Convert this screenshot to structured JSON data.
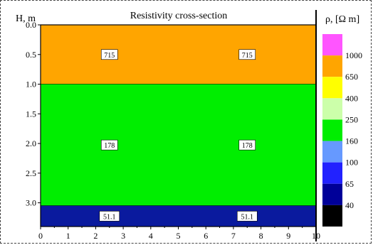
{
  "chart_data": {
    "type": "heatmap",
    "title": "Resistivity cross-section",
    "ylabel": "H, m",
    "xlabel": "",
    "xlim": [
      0,
      10
    ],
    "ylim": [
      0.0,
      3.4
    ],
    "y_inverted": true,
    "x_ticks": [
      "0",
      "1",
      "2",
      "3",
      "4",
      "5",
      "6",
      "7",
      "8",
      "9",
      "10"
    ],
    "y_ticks": [
      "0.0",
      "0.5",
      "1.0",
      "1.5",
      "2.0",
      "2.5",
      "3.0"
    ],
    "layers": [
      {
        "top": 0.0,
        "bottom": 1.0,
        "resistivity": "715",
        "color": "#ffa500",
        "labels_at_x": [
          2.5,
          7.5
        ]
      },
      {
        "top": 1.0,
        "bottom": 3.05,
        "resistivity": "178",
        "color": "#00ee00",
        "labels_at_x": [
          2.5,
          7.5
        ]
      },
      {
        "top": 3.05,
        "bottom": 3.4,
        "resistivity": "51.1",
        "color": "#0a1a9e",
        "labels_at_x": [
          2.5,
          7.5
        ]
      }
    ],
    "colorbar": {
      "label": "ρ, [Ω m]",
      "colors": [
        "#ff55ff",
        "#ffa500",
        "#ffff00",
        "#ccffaa",
        "#00ee00",
        "#6699ff",
        "#2222ff",
        "#000099",
        "#000000"
      ],
      "boundaries": [
        "1000",
        "650",
        "400",
        "250",
        "160",
        "100",
        "65",
        "40"
      ]
    }
  }
}
